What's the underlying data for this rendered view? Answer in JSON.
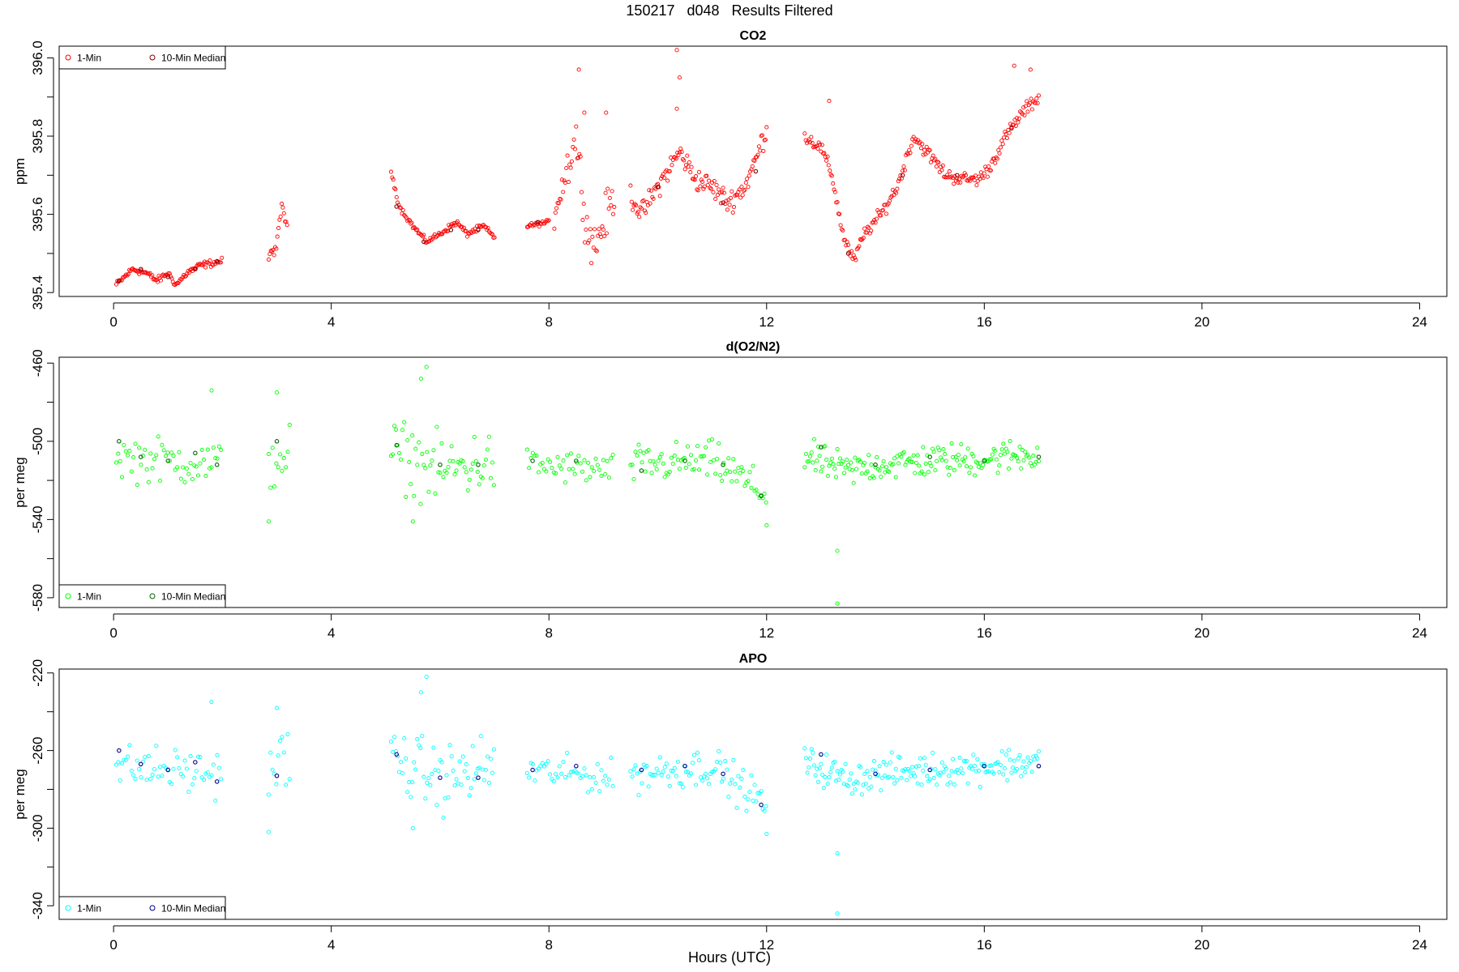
{
  "page": {
    "title": "150217   d048   Results Filtered",
    "xlabel": "Hours (UTC)"
  },
  "chart_data": [
    {
      "type": "scatter",
      "title": "CO2",
      "ylabel": "ppm",
      "xlim": [
        -1,
        24.5
      ],
      "ylim": [
        395.39,
        396.03
      ],
      "xticks": [
        0,
        4,
        8,
        12,
        16,
        20,
        24
      ],
      "yticks": [
        395.4,
        395.6,
        395.8,
        396.0
      ],
      "ytick_labels": [
        "395.4",
        "395.6",
        "395.8",
        "396.0"
      ],
      "legend": {
        "position": "top-left",
        "entries": [
          "1-Min",
          "10-Min Median"
        ]
      },
      "colors": {
        "one_min": "#ff0000",
        "median": "#800000"
      },
      "segments": [
        {
          "x_start": 0.05,
          "x_end": 2.0,
          "step": 0.02,
          "anchors": [
            [
              0.05,
              395.42
            ],
            [
              0.35,
              395.46
            ],
            [
              0.6,
              395.45
            ],
            [
              0.8,
              395.43
            ],
            [
              1.0,
              395.45
            ],
            [
              1.15,
              395.42
            ],
            [
              1.35,
              395.45
            ],
            [
              1.6,
              395.47
            ],
            [
              2.0,
              395.48
            ]
          ],
          "noise": 0.006
        },
        {
          "x_start": 2.85,
          "x_end": 3.2,
          "step": 0.02,
          "anchors": [
            [
              2.85,
              395.49
            ],
            [
              3.0,
              395.52
            ],
            [
              3.1,
              395.63
            ],
            [
              3.2,
              395.55
            ]
          ],
          "noise": 0.01
        },
        {
          "x_start": 5.1,
          "x_end": 7.0,
          "step": 0.02,
          "anchors": [
            [
              5.1,
              395.71
            ],
            [
              5.25,
              395.62
            ],
            [
              5.5,
              395.57
            ],
            [
              5.75,
              395.53
            ],
            [
              6.0,
              395.55
            ],
            [
              6.3,
              395.58
            ],
            [
              6.5,
              395.55
            ],
            [
              6.8,
              395.57
            ],
            [
              7.0,
              395.54
            ]
          ],
          "noise": 0.005
        },
        {
          "x_start": 7.6,
          "x_end": 8.0,
          "step": 0.02,
          "anchors": [
            [
              7.6,
              395.57
            ],
            [
              8.0,
              395.58
            ]
          ],
          "noise": 0.004
        },
        {
          "x_start": 8.1,
          "x_end": 9.2,
          "step": 0.02,
          "anchors": [
            [
              8.1,
              395.62
            ],
            [
              8.3,
              395.7
            ],
            [
              8.5,
              395.8
            ],
            [
              8.7,
              395.56
            ],
            [
              8.85,
              395.52
            ],
            [
              9.2,
              395.65
            ]
          ],
          "noise": 0.04
        },
        {
          "x_start": 9.5,
          "x_end": 12.0,
          "step": 0.02,
          "anchors": [
            [
              9.5,
              395.65
            ],
            [
              9.7,
              395.6
            ],
            [
              10.0,
              395.67
            ],
            [
              10.4,
              395.76
            ],
            [
              10.7,
              395.69
            ],
            [
              11.0,
              395.67
            ],
            [
              11.3,
              395.63
            ],
            [
              11.6,
              395.67
            ],
            [
              11.8,
              395.74
            ],
            [
              12.0,
              395.82
            ]
          ],
          "noise": 0.02
        },
        {
          "x_start": 12.7,
          "x_end": 17.0,
          "step": 0.02,
          "anchors": [
            [
              12.7,
              395.8
            ],
            [
              13.0,
              395.77
            ],
            [
              13.2,
              395.7
            ],
            [
              13.4,
              395.55
            ],
            [
              13.6,
              395.48
            ],
            [
              13.8,
              395.55
            ],
            [
              14.1,
              395.6
            ],
            [
              14.4,
              395.67
            ],
            [
              14.7,
              395.8
            ],
            [
              15.0,
              395.75
            ],
            [
              15.3,
              395.7
            ],
            [
              15.6,
              395.69
            ],
            [
              15.9,
              395.69
            ],
            [
              16.1,
              395.72
            ],
            [
              16.4,
              395.8
            ],
            [
              16.7,
              395.86
            ],
            [
              17.0,
              395.9
            ]
          ],
          "noise": 0.012
        }
      ],
      "outliers": [
        [
          8.55,
          395.97
        ],
        [
          8.65,
          395.86
        ],
        [
          9.05,
          395.86
        ],
        [
          10.35,
          396.02
        ],
        [
          10.4,
          395.95
        ],
        [
          10.35,
          395.87
        ],
        [
          13.15,
          395.89
        ],
        [
          16.55,
          395.98
        ],
        [
          16.85,
          395.97
        ]
      ],
      "median_points": [
        [
          0.1,
          395.43
        ],
        [
          0.5,
          395.46
        ],
        [
          1.0,
          395.44
        ],
        [
          1.5,
          395.46
        ],
        [
          1.9,
          395.48
        ],
        [
          5.2,
          395.62
        ],
        [
          5.7,
          395.53
        ],
        [
          6.2,
          395.56
        ],
        [
          6.7,
          395.56
        ],
        [
          7.8,
          395.58
        ],
        [
          10.0,
          395.67
        ],
        [
          11.2,
          395.63
        ],
        [
          11.8,
          395.71
        ],
        [
          13.5,
          395.5
        ],
        [
          14.5,
          395.7
        ],
        [
          15.5,
          395.7
        ],
        [
          16.5,
          395.82
        ]
      ]
    },
    {
      "type": "scatter",
      "title": "d(O2/N2)",
      "ylabel": "per meg",
      "xlim": [
        -1,
        24.5
      ],
      "ylim": [
        -585,
        -457
      ],
      "xticks": [
        0,
        4,
        8,
        12,
        16,
        20,
        24
      ],
      "yticks": [
        -580,
        -540,
        -500,
        -460
      ],
      "ytick_labels": [
        "-580",
        "-540",
        "-500",
        "-460"
      ],
      "legend": {
        "position": "bottom-left",
        "entries": [
          "1-Min",
          "10-Min Median"
        ]
      },
      "colors": {
        "one_min": "#00ff00",
        "median": "#006400"
      },
      "segments": [
        {
          "x_start": 0.05,
          "x_end": 2.0,
          "step": 0.035,
          "anchors": [
            [
              0.05,
              -508
            ],
            [
              1.0,
              -510
            ],
            [
              2.0,
              -512
            ]
          ],
          "noise": 8
        },
        {
          "x_start": 2.85,
          "x_end": 3.25,
          "step": 0.035,
          "anchors": [
            [
              2.85,
              -510
            ],
            [
              3.25,
              -505
            ]
          ],
          "noise": 12
        },
        {
          "x_start": 5.1,
          "x_end": 7.0,
          "step": 0.03,
          "anchors": [
            [
              5.1,
              -505
            ],
            [
              6.0,
              -515
            ],
            [
              7.0,
              -510
            ]
          ],
          "noise": 12
        },
        {
          "x_start": 7.6,
          "x_end": 9.2,
          "step": 0.035,
          "anchors": [
            [
              7.6,
              -512
            ],
            [
              9.2,
              -515
            ]
          ],
          "noise": 6
        },
        {
          "x_start": 9.5,
          "x_end": 12.0,
          "step": 0.03,
          "anchors": [
            [
              9.5,
              -512
            ],
            [
              11.0,
              -510
            ],
            [
              11.5,
              -518
            ],
            [
              12.0,
              -528
            ]
          ],
          "noise": 7
        },
        {
          "x_start": 12.7,
          "x_end": 17.0,
          "step": 0.025,
          "anchors": [
            [
              12.7,
              -508
            ],
            [
              13.5,
              -515
            ],
            [
              14.0,
              -512
            ],
            [
              15.0,
              -510
            ],
            [
              16.0,
              -509
            ],
            [
              17.0,
              -506
            ]
          ],
          "noise": 6
        }
      ],
      "outliers": [
        [
          5.75,
          -462
        ],
        [
          5.65,
          -468
        ],
        [
          1.8,
          -474
        ],
        [
          3.0,
          -475
        ],
        [
          13.3,
          -556
        ],
        [
          13.3,
          -583
        ],
        [
          12.0,
          -543
        ],
        [
          2.85,
          -541
        ],
        [
          5.5,
          -541
        ]
      ],
      "median_points": [
        [
          0.1,
          -500
        ],
        [
          0.5,
          -508
        ],
        [
          1.0,
          -510
        ],
        [
          1.5,
          -506
        ],
        [
          1.9,
          -512
        ],
        [
          3.0,
          -500
        ],
        [
          5.2,
          -502
        ],
        [
          6.0,
          -512
        ],
        [
          6.7,
          -512
        ],
        [
          7.7,
          -510
        ],
        [
          8.5,
          -510
        ],
        [
          9.7,
          -515
        ],
        [
          10.5,
          -510
        ],
        [
          11.2,
          -512
        ],
        [
          11.9,
          -528
        ],
        [
          13.0,
          -503
        ],
        [
          14.0,
          -512
        ],
        [
          15.0,
          -508
        ],
        [
          16.0,
          -510
        ],
        [
          17.0,
          -508
        ]
      ]
    },
    {
      "type": "scatter",
      "title": "APO",
      "ylabel": "per meg",
      "xlim": [
        -1,
        24.5
      ],
      "ylim": [
        -347,
        -218
      ],
      "xticks": [
        0,
        4,
        8,
        12,
        16,
        20,
        24
      ],
      "yticks": [
        -340,
        -300,
        -260,
        -220
      ],
      "ytick_labels": [
        "-340",
        "-300",
        "-260",
        "-220"
      ],
      "legend": {
        "position": "bottom-left",
        "entries": [
          "1-Min",
          "10-Min Median"
        ]
      },
      "colors": {
        "one_min": "#00ffff",
        "median": "#00008b"
      },
      "segments": [
        {
          "x_start": 0.05,
          "x_end": 2.0,
          "step": 0.035,
          "anchors": [
            [
              0.05,
              -268
            ],
            [
              1.0,
              -270
            ],
            [
              2.0,
              -272
            ]
          ],
          "noise": 8
        },
        {
          "x_start": 2.85,
          "x_end": 3.25,
          "step": 0.035,
          "anchors": [
            [
              2.85,
              -270
            ],
            [
              3.25,
              -262
            ]
          ],
          "noise": 12
        },
        {
          "x_start": 5.1,
          "x_end": 7.0,
          "step": 0.03,
          "anchors": [
            [
              5.1,
              -264
            ],
            [
              6.0,
              -275
            ],
            [
              7.0,
              -268
            ]
          ],
          "noise": 12
        },
        {
          "x_start": 7.6,
          "x_end": 9.2,
          "step": 0.035,
          "anchors": [
            [
              7.6,
              -270
            ],
            [
              9.2,
              -274
            ]
          ],
          "noise": 6
        },
        {
          "x_start": 9.5,
          "x_end": 12.0,
          "step": 0.03,
          "anchors": [
            [
              9.5,
              -272
            ],
            [
              11.0,
              -268
            ],
            [
              11.5,
              -278
            ],
            [
              12.0,
              -288
            ]
          ],
          "noise": 7
        },
        {
          "x_start": 12.7,
          "x_end": 17.0,
          "step": 0.025,
          "anchors": [
            [
              12.7,
              -266
            ],
            [
              13.5,
              -275
            ],
            [
              14.0,
              -272
            ],
            [
              15.0,
              -270
            ],
            [
              16.0,
              -268
            ],
            [
              17.0,
              -266
            ]
          ],
          "noise": 6
        }
      ],
      "outliers": [
        [
          5.75,
          -222
        ],
        [
          5.65,
          -230
        ],
        [
          1.8,
          -235
        ],
        [
          3.0,
          -238
        ],
        [
          13.3,
          -313
        ],
        [
          13.3,
          -344
        ],
        [
          12.0,
          -303
        ],
        [
          2.85,
          -302
        ],
        [
          5.5,
          -300
        ]
      ],
      "median_points": [
        [
          0.1,
          -260
        ],
        [
          0.5,
          -267
        ],
        [
          1.0,
          -270
        ],
        [
          1.5,
          -266
        ],
        [
          1.9,
          -276
        ],
        [
          3.0,
          -273
        ],
        [
          5.2,
          -262
        ],
        [
          6.0,
          -274
        ],
        [
          6.7,
          -274
        ],
        [
          7.7,
          -270
        ],
        [
          8.5,
          -268
        ],
        [
          9.7,
          -270
        ],
        [
          10.5,
          -268
        ],
        [
          11.2,
          -272
        ],
        [
          11.9,
          -288
        ],
        [
          13.0,
          -262
        ],
        [
          14.0,
          -272
        ],
        [
          15.0,
          -270
        ],
        [
          16.0,
          -268
        ],
        [
          17.0,
          -268
        ]
      ]
    }
  ]
}
